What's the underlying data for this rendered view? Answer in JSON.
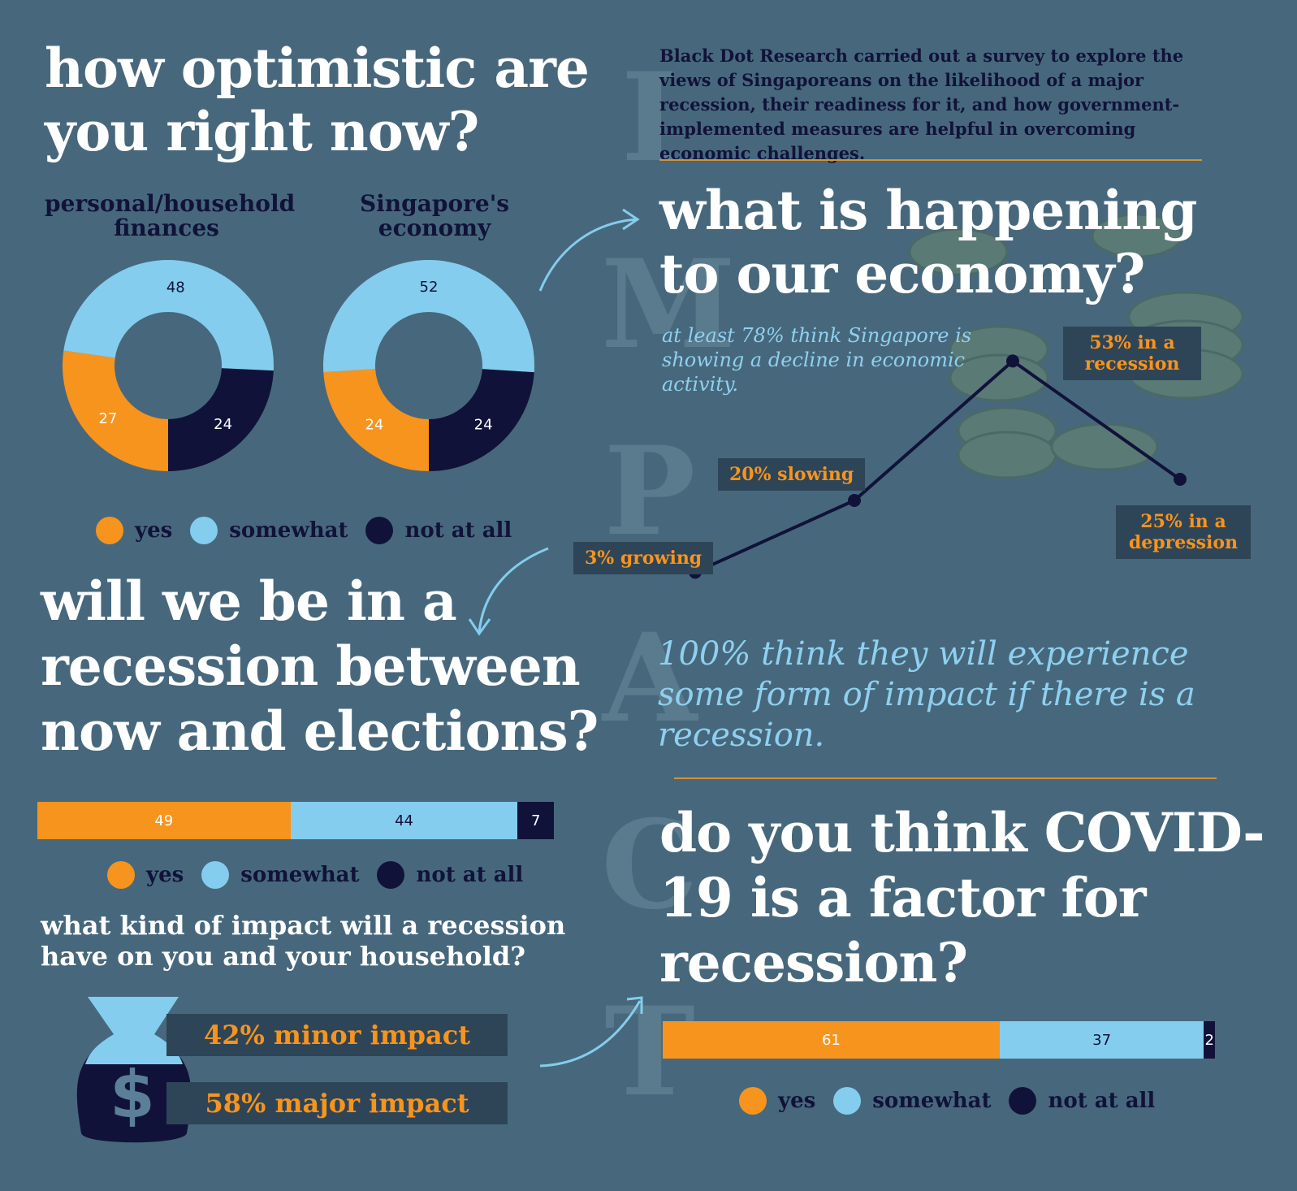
{
  "titles": {
    "optimism": "how optimistic are you right now?",
    "economy": "what is happening to our economy?",
    "recession": "will we be in a recession between now and elections?",
    "covid": "do you think COVID-19 is a factor for recession?"
  },
  "impact_letters": [
    "I",
    "M",
    "P",
    "A",
    "C",
    "T"
  ],
  "intro": "Black Dot Research carried out a survey to explore the views of Singaporeans on the likelihood of a major recession, their readiness for it, and how government-implemented measures are helpful in overcoming economic challenges.",
  "stat_decline": "at least 78% think Singapore is showing a decline in economic activity.",
  "stat_impact": "100% think they will experience some form of impact if there is a recession.",
  "impact_question": "what kind of impact will a recession have on you and your household?",
  "impact_minor": "42% minor impact",
  "impact_major": "58% major impact",
  "legend": {
    "yes": "yes",
    "somewhat": "somewhat",
    "not_at_all": "not at all"
  },
  "colors": {
    "yes": "#f7941d",
    "somewhat": "#84cdee",
    "not_at_all": "#11123a",
    "bg": "#47687c"
  },
  "chart_data": [
    {
      "type": "pie",
      "title": "personal/household finances",
      "categories": [
        "yes",
        "somewhat",
        "not at all"
      ],
      "values": [
        27,
        48,
        24
      ]
    },
    {
      "type": "pie",
      "title": "Singapore's economy",
      "categories": [
        "yes",
        "somewhat",
        "not at all"
      ],
      "values": [
        24,
        52,
        24
      ]
    },
    {
      "type": "line",
      "categories": [
        "3% growing",
        "20% slowing",
        "53% in a recession",
        "25% in a depression"
      ],
      "values": [
        3,
        20,
        53,
        25
      ]
    },
    {
      "type": "bar",
      "orientation": "horizontal-stacked",
      "categories": [
        "yes",
        "somewhat",
        "not at all"
      ],
      "values": [
        49,
        44,
        7
      ]
    },
    {
      "type": "bar",
      "orientation": "horizontal-stacked",
      "categories": [
        "yes",
        "somewhat",
        "not at all"
      ],
      "values": [
        61,
        37,
        2
      ]
    }
  ]
}
